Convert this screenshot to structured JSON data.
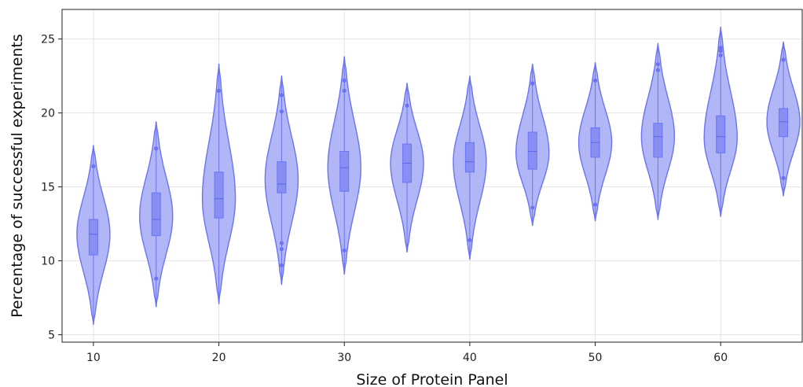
{
  "chart_data": {
    "type": "violin",
    "xlabel": "Size of Protein Panel",
    "ylabel": "Percentage of successful experiments",
    "xlim": [
      7.5,
      66.5
    ],
    "ylim": [
      4.5,
      27
    ],
    "x_ticks": [
      10,
      20,
      30,
      40,
      50,
      60
    ],
    "y_ticks": [
      5,
      10,
      15,
      20,
      25
    ],
    "grid": true,
    "legend": "none",
    "colors": {
      "fill": "#a3aaf5",
      "line": "#6b73f2",
      "box": "#8790f2",
      "grid": "#e2e2e2",
      "axis": "#222222"
    },
    "categories": [
      10,
      15,
      20,
      25,
      30,
      35,
      40,
      45,
      50,
      55,
      60,
      65
    ],
    "violins": [
      {
        "x": 10,
        "min": 5.7,
        "max": 17.8,
        "q1": 10.4,
        "median": 11.8,
        "q3": 12.8,
        "mode": 11.8,
        "outliers": [
          16.4
        ]
      },
      {
        "x": 15,
        "min": 6.9,
        "max": 19.4,
        "q1": 11.7,
        "median": 12.8,
        "q3": 14.6,
        "mode": 13.0,
        "outliers": [
          17.6,
          8.8
        ]
      },
      {
        "x": 20,
        "min": 7.1,
        "max": 23.3,
        "q1": 12.9,
        "median": 14.2,
        "q3": 16.0,
        "mode": 14.2,
        "outliers": [
          21.5
        ]
      },
      {
        "x": 25,
        "min": 8.4,
        "max": 22.5,
        "q1": 14.6,
        "median": 15.2,
        "q3": 16.7,
        "mode": 15.5,
        "outliers": [
          21.2,
          20.1,
          11.2,
          10.8,
          9.7
        ]
      },
      {
        "x": 30,
        "min": 9.1,
        "max": 23.8,
        "q1": 14.7,
        "median": 16.3,
        "q3": 17.4,
        "mode": 16.3,
        "outliers": [
          22.2,
          21.5,
          10.7
        ]
      },
      {
        "x": 35,
        "min": 10.6,
        "max": 22.0,
        "q1": 15.3,
        "median": 16.6,
        "q3": 17.9,
        "mode": 16.6,
        "outliers": [
          20.5
        ]
      },
      {
        "x": 40,
        "min": 10.1,
        "max": 22.5,
        "q1": 16.0,
        "median": 16.7,
        "q3": 18.0,
        "mode": 16.7,
        "outliers": [
          11.4
        ]
      },
      {
        "x": 45,
        "min": 12.4,
        "max": 23.3,
        "q1": 16.2,
        "median": 17.4,
        "q3": 18.7,
        "mode": 17.3,
        "outliers": [
          22.0,
          13.6
        ]
      },
      {
        "x": 50,
        "min": 12.7,
        "max": 23.4,
        "q1": 17.0,
        "median": 18.0,
        "q3": 19.0,
        "mode": 18.0,
        "outliers": [
          22.2,
          13.8
        ]
      },
      {
        "x": 55,
        "min": 12.8,
        "max": 24.7,
        "q1": 17.0,
        "median": 18.4,
        "q3": 19.3,
        "mode": 18.4,
        "outliers": [
          23.3,
          22.9
        ]
      },
      {
        "x": 60,
        "min": 13.0,
        "max": 25.8,
        "q1": 17.3,
        "median": 18.4,
        "q3": 19.8,
        "mode": 18.3,
        "outliers": [
          24.4,
          24.2,
          23.9
        ]
      },
      {
        "x": 65,
        "min": 14.4,
        "max": 24.8,
        "q1": 18.4,
        "median": 19.4,
        "q3": 20.3,
        "mode": 19.4,
        "outliers": [
          23.6,
          15.6
        ]
      }
    ]
  }
}
